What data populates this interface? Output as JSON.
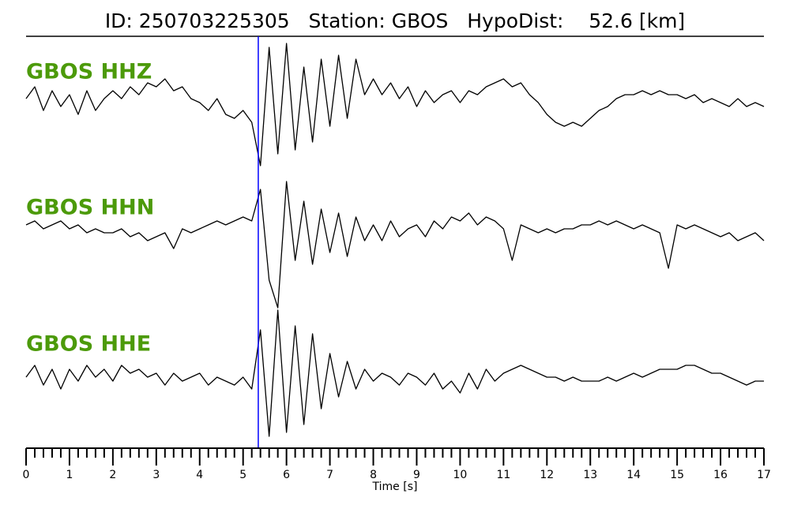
{
  "chart_data": {
    "type": "line",
    "title": "ID: 250703225305   Station: GBOS   HypoDist:    52.6 [km]",
    "xlabel": "Time [s]",
    "x": [
      0,
      0.2,
      0.4,
      0.6,
      0.8,
      1,
      1.2,
      1.4,
      1.6,
      1.8,
      2,
      2.2,
      2.4,
      2.6,
      2.8,
      3,
      3.2,
      3.4,
      3.6,
      3.8,
      4,
      4.2,
      4.4,
      4.6,
      4.8,
      5,
      5.2,
      5.4,
      5.6,
      5.8,
      6,
      6.2,
      6.4,
      6.6,
      6.8,
      7,
      7.2,
      7.4,
      7.6,
      7.8,
      8,
      8.2,
      8.4,
      8.6,
      8.8,
      9,
      9.2,
      9.4,
      9.6,
      9.8,
      10,
      10.2,
      10.4,
      10.6,
      10.8,
      11,
      11.2,
      11.4,
      11.6,
      11.8,
      12,
      12.2,
      12.4,
      12.6,
      12.8,
      13,
      13.2,
      13.4,
      13.6,
      13.8,
      14,
      14.2,
      14.4,
      14.6,
      14.8,
      15,
      15.2,
      15.4,
      15.6,
      15.8,
      16,
      16.2,
      16.4,
      16.6,
      16.8,
      17
    ],
    "series": [
      {
        "name": "GBOS HHZ",
        "color": "#000000",
        "label_color": "#4c9a0a",
        "values": [
          0.1,
          0.4,
          -0.2,
          0.3,
          -0.1,
          0.2,
          -0.3,
          0.3,
          -0.2,
          0.1,
          0.3,
          0.1,
          0.4,
          0.2,
          0.5,
          0.4,
          0.6,
          0.3,
          0.4,
          0.1,
          0.0,
          -0.2,
          0.1,
          -0.3,
          -0.4,
          -0.2,
          -0.5,
          -1.6,
          1.4,
          -1.3,
          1.5,
          -1.2,
          0.9,
          -1.0,
          1.1,
          -0.6,
          1.2,
          -0.4,
          1.1,
          0.2,
          0.6,
          0.2,
          0.5,
          0.1,
          0.4,
          -0.1,
          0.3,
          0.0,
          0.2,
          0.3,
          0.0,
          0.3,
          0.2,
          0.4,
          0.5,
          0.6,
          0.4,
          0.5,
          0.2,
          0.0,
          -0.3,
          -0.5,
          -0.6,
          -0.5,
          -0.6,
          -0.4,
          -0.2,
          -0.1,
          0.1,
          0.2,
          0.2,
          0.3,
          0.2,
          0.3,
          0.2,
          0.2,
          0.1,
          0.2,
          0.0,
          0.1,
          0.0,
          -0.1,
          0.1,
          -0.1,
          0.0,
          -0.1
        ]
      },
      {
        "name": "GBOS HHN",
        "color": "#000000",
        "label_color": "#4c9a0a",
        "values": [
          0.1,
          0.2,
          0.0,
          0.1,
          0.2,
          0.0,
          0.1,
          -0.1,
          0.0,
          -0.1,
          -0.1,
          0.0,
          -0.2,
          -0.1,
          -0.3,
          -0.2,
          -0.1,
          -0.5,
          0.0,
          -0.1,
          0.0,
          0.1,
          0.2,
          0.1,
          0.2,
          0.3,
          0.2,
          1.0,
          -1.3,
          -2.0,
          1.2,
          -0.8,
          0.7,
          -0.9,
          0.5,
          -0.6,
          0.4,
          -0.7,
          0.3,
          -0.3,
          0.1,
          -0.3,
          0.2,
          -0.2,
          0.0,
          0.1,
          -0.2,
          0.2,
          0.0,
          0.3,
          0.2,
          0.4,
          0.1,
          0.3,
          0.2,
          0.0,
          -0.8,
          0.1,
          0.0,
          -0.1,
          0.0,
          -0.1,
          0.0,
          0.0,
          0.1,
          0.1,
          0.2,
          0.1,
          0.2,
          0.1,
          0.0,
          0.1,
          0.0,
          -0.1,
          -1.0,
          0.1,
          0.0,
          0.1,
          0.0,
          -0.1,
          -0.2,
          -0.1,
          -0.3,
          -0.2,
          -0.1,
          -0.3
        ]
      },
      {
        "name": "GBOS HHE",
        "color": "#000000",
        "label_color": "#4c9a0a",
        "values": [
          0.0,
          0.3,
          -0.2,
          0.2,
          -0.3,
          0.2,
          -0.1,
          0.3,
          0.0,
          0.2,
          -0.1,
          0.3,
          0.1,
          0.2,
          0.0,
          0.1,
          -0.2,
          0.1,
          -0.1,
          0.0,
          0.1,
          -0.2,
          0.0,
          -0.1,
          -0.2,
          0.0,
          -0.3,
          1.2,
          -1.5,
          1.7,
          -1.4,
          1.3,
          -1.2,
          1.1,
          -0.8,
          0.6,
          -0.5,
          0.4,
          -0.3,
          0.2,
          -0.1,
          0.1,
          0.0,
          -0.2,
          0.1,
          0.0,
          -0.2,
          0.1,
          -0.3,
          -0.1,
          -0.4,
          0.1,
          -0.3,
          0.2,
          -0.1,
          0.1,
          0.2,
          0.3,
          0.2,
          0.1,
          0.0,
          0.0,
          -0.1,
          0.0,
          -0.1,
          -0.1,
          -0.1,
          0.0,
          -0.1,
          0.0,
          0.1,
          0.0,
          0.1,
          0.2,
          0.2,
          0.2,
          0.3,
          0.3,
          0.2,
          0.1,
          0.1,
          0.0,
          -0.1,
          -0.2,
          -0.1,
          -0.1
        ]
      }
    ],
    "ylim": [
      -2.5,
      2.5
    ],
    "xlim": [
      0,
      17
    ],
    "xticks": [
      0,
      1,
      2,
      3,
      4,
      5,
      6,
      7,
      8,
      9,
      10,
      11,
      12,
      13,
      14,
      15,
      16,
      17
    ],
    "xminor_divisions": 5,
    "pick": 5.35,
    "pick_color": "#0000ff"
  }
}
